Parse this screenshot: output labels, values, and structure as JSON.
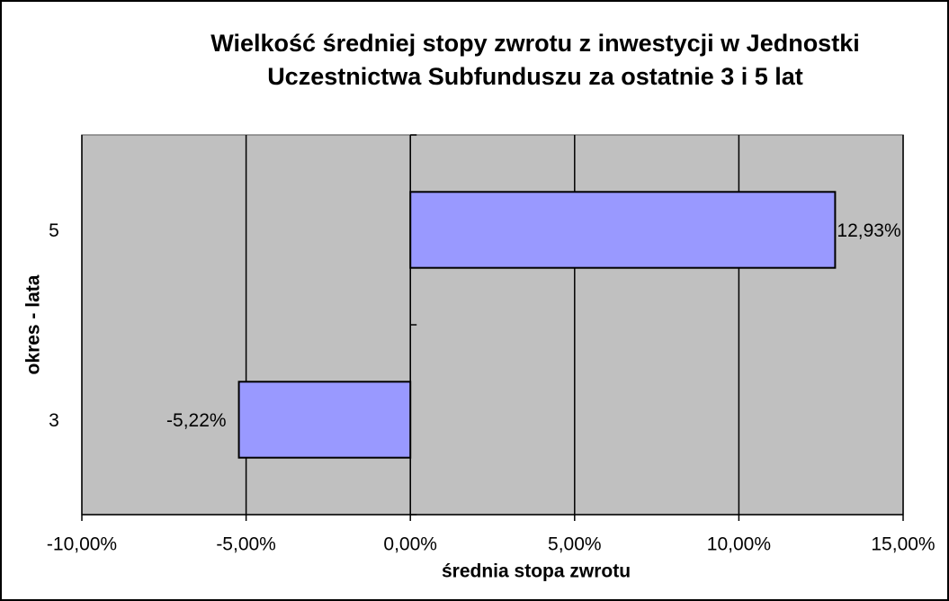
{
  "chart_data": {
    "type": "bar",
    "orientation": "horizontal",
    "title": "Wielkość średniej stopy zwrotu z inwestycji w Jednostki Uczestnictwa Subfunduszu za ostatnie 3 i 5 lat",
    "x_label": "średnia stopa zwrotu",
    "y_label": "okres - lata",
    "categories": [
      "3",
      "5"
    ],
    "values": [
      -5.22,
      12.93
    ],
    "value_labels": [
      "-5,22%",
      "12,93%"
    ],
    "color": "#9999ff",
    "xlim": [
      -10,
      15
    ],
    "xticks": [
      {
        "value": -10,
        "label": "-10,00%"
      },
      {
        "value": -5,
        "label": "-5,00%"
      },
      {
        "value": 0,
        "label": "0,00%"
      },
      {
        "value": 5,
        "label": "5,00%"
      },
      {
        "value": 10,
        "label": "10,00%"
      },
      {
        "value": 15,
        "label": "15,00%"
      }
    ],
    "grid": true
  }
}
